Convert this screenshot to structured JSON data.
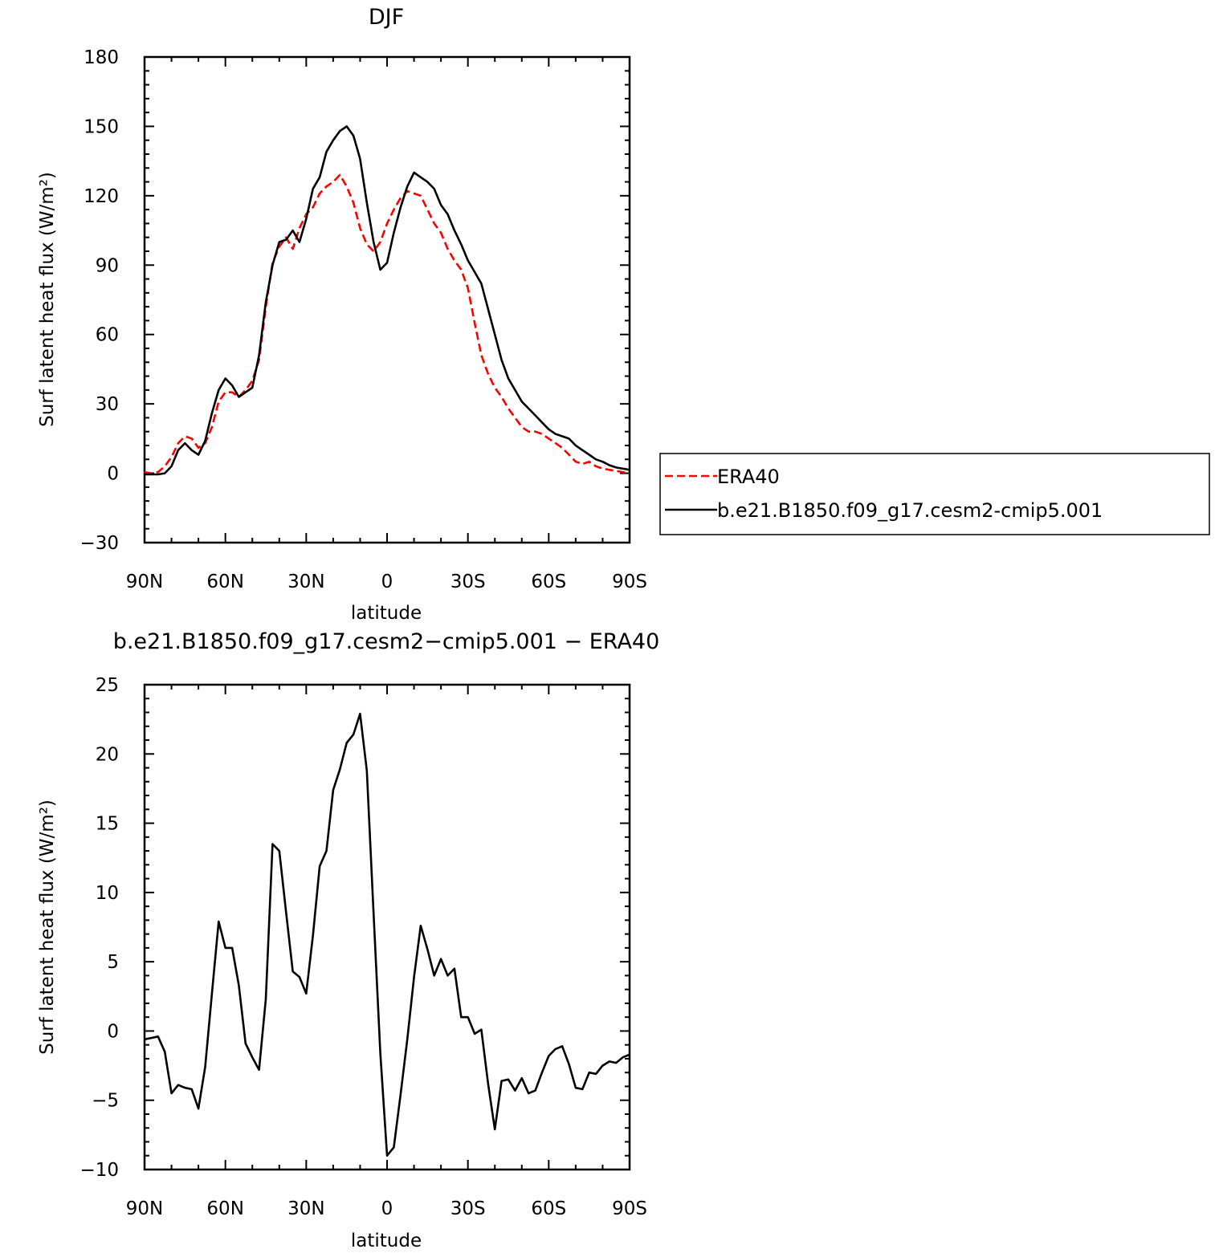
{
  "colors": {
    "model": "#000000",
    "obs": "#ff0000",
    "background": "#ffffff"
  },
  "legend": {
    "entries": [
      {
        "label": "ERA40",
        "color": "#ff0000",
        "dash": "dashed"
      },
      {
        "label": "b.e21.B1850.f09_g17.cesm2-cmip5.001",
        "color": "#000000",
        "dash": "solid"
      }
    ]
  },
  "chart_data": [
    {
      "type": "line",
      "title": "DJF",
      "xlabel": "latitude",
      "ylabel": "Surf latent heat flux (W/m²)",
      "ylim": [
        -30,
        180
      ],
      "xlim": [
        90,
        -90
      ],
      "xticks": [
        90,
        60,
        30,
        0,
        -30,
        -60,
        -90
      ],
      "xtick_labels": [
        "90N",
        "60N",
        "30N",
        "0",
        "30S",
        "60S",
        "90S"
      ],
      "yticks": [
        -30,
        0,
        30,
        60,
        90,
        120,
        150,
        180
      ],
      "ytick_labels": [
        "−30",
        "0",
        "30",
        "60",
        "90",
        "120",
        "150",
        "180"
      ],
      "grid": false,
      "x": [
        90,
        87.5,
        85,
        82.5,
        80,
        77.5,
        75,
        72.5,
        70,
        67.5,
        65,
        62.5,
        60,
        57.5,
        55,
        52.5,
        50,
        47.5,
        45,
        42.5,
        40,
        37.5,
        35,
        32.5,
        30,
        27.5,
        25,
        22.5,
        20,
        17.5,
        15,
        12.5,
        10,
        7.5,
        5,
        2.5,
        0,
        -2.5,
        -5,
        -7.5,
        -10,
        -12.5,
        -15,
        -17.5,
        -20,
        -22.5,
        -25,
        -27.5,
        -30,
        -32.5,
        -35,
        -37.5,
        -40,
        -42.5,
        -45,
        -47.5,
        -50,
        -52.5,
        -55,
        -57.5,
        -60,
        -62.5,
        -65,
        -67.5,
        -70,
        -72.5,
        -75,
        -77.5,
        -80,
        -82.5,
        -85,
        -87.5,
        -90
      ],
      "series": [
        {
          "name": "ERA40",
          "color": "#ff0000",
          "dash": "dashed",
          "values": [
            0.5,
            0,
            0.5,
            3,
            7,
            13,
            16,
            15,
            11,
            13,
            20,
            31,
            35,
            35,
            33,
            36,
            40,
            49,
            72,
            91,
            98,
            102,
            97,
            106,
            112,
            115,
            121,
            124,
            126,
            129,
            124,
            117,
            106,
            99,
            96,
            100,
            108,
            114,
            119,
            122,
            121,
            120,
            114,
            108,
            104,
            97,
            92,
            88,
            80,
            65,
            51,
            43,
            37,
            33,
            28,
            24,
            20,
            18,
            18,
            17,
            15,
            13,
            11,
            8,
            5,
            4,
            5,
            3,
            2,
            1.5,
            1,
            0.5,
            0
          ]
        },
        {
          "name": "b.e21.B1850.f09_g17.cesm2-cmip5.001",
          "color": "#000000",
          "dash": "solid",
          "values": [
            -0.5,
            -0.5,
            -0.5,
            0,
            3,
            10,
            13,
            10,
            8,
            14,
            26,
            36,
            41,
            38,
            33,
            35,
            37,
            51,
            74,
            90,
            100,
            101,
            105,
            100,
            110,
            123,
            128,
            139,
            144,
            148,
            150,
            146,
            136,
            117,
            100,
            88,
            91,
            104,
            115,
            124,
            130,
            128,
            126,
            123,
            116,
            112,
            105,
            99,
            92,
            87,
            82,
            71,
            60,
            49,
            41,
            36,
            31,
            28,
            25,
            22,
            19,
            17,
            16,
            15,
            12,
            10,
            8,
            6,
            5,
            3.5,
            2.5,
            2,
            1.5
          ]
        }
      ]
    },
    {
      "type": "line",
      "title": "b.e21.B1850.f09_g17.cesm2−cmip5.001  −  ERA40",
      "xlabel": "latitude",
      "ylabel": "Surf latent heat flux (W/m²)",
      "ylim": [
        -10,
        25
      ],
      "xlim": [
        90,
        -90
      ],
      "xticks": [
        90,
        60,
        30,
        0,
        -30,
        -60,
        -90
      ],
      "xtick_labels": [
        "90N",
        "60N",
        "30N",
        "0",
        "30S",
        "60S",
        "90S"
      ],
      "yticks": [
        -10,
        -5,
        0,
        5,
        10,
        15,
        20,
        25
      ],
      "ytick_labels": [
        "−10",
        "−5",
        "0",
        "5",
        "10",
        "15",
        "20",
        "25"
      ],
      "grid": false,
      "x": [
        90,
        87.5,
        85,
        82.5,
        80,
        77.5,
        75,
        72.5,
        70,
        67.5,
        65,
        62.5,
        60,
        57.5,
        55,
        52.5,
        50,
        47.5,
        45,
        42.5,
        40,
        37.5,
        35,
        32.5,
        30,
        27.5,
        25,
        22.5,
        20,
        17.5,
        15,
        12.5,
        10,
        7.5,
        5,
        2.5,
        0,
        -2.5,
        -5,
        -7.5,
        -10,
        -12.5,
        -15,
        -17.5,
        -20,
        -22.5,
        -25,
        -27.5,
        -30,
        -32.5,
        -35,
        -37.5,
        -40,
        -42.5,
        -45,
        -47.5,
        -50,
        -52.5,
        -55,
        -57.5,
        -60,
        -62.5,
        -65,
        -67.5,
        -70,
        -72.5,
        -75,
        -77.5,
        -80,
        -82.5,
        -85,
        -87.5,
        -90
      ],
      "series": [
        {
          "name": "",
          "color": "#000000",
          "dash": "solid",
          "values": [
            -0.6,
            -0.5,
            -0.4,
            -1.5,
            -4.5,
            -3.9,
            -4.1,
            -4.2,
            -5.6,
            -2.6,
            2.7,
            7.9,
            6.0,
            6.0,
            3.3,
            -0.9,
            -1.9,
            -2.8,
            2.3,
            13.5,
            13.0,
            8.6,
            4.3,
            3.9,
            2.7,
            6.9,
            11.9,
            13.0,
            17.4,
            18.9,
            20.8,
            21.4,
            22.9,
            18.8,
            8.5,
            -1.6,
            -9.0,
            -8.4,
            -4.6,
            -0.6,
            3.9,
            7.6,
            5.9,
            4.0,
            5.2,
            4.0,
            4.5,
            1.0,
            1.0,
            -0.2,
            0.1,
            -3.8,
            -7.1,
            -3.6,
            -3.5,
            -4.3,
            -3.4,
            -4.5,
            -4.3,
            -3.0,
            -1.8,
            -1.3,
            -1.1,
            -2.4,
            -4.1,
            -4.2,
            -3.0,
            -3.1,
            -2.5,
            -2.2,
            -2.3,
            -1.9,
            -1.7
          ]
        }
      ]
    }
  ]
}
